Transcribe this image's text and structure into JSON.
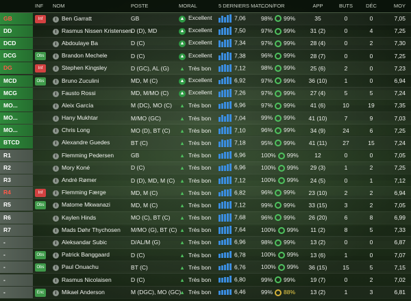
{
  "headers": {
    "role": "",
    "inf": "INF",
    "nom": "NOM",
    "poste": "POSTE",
    "moral": "MORAL",
    "derniers": "5 DERNIERS MAT...",
    "confor": "CON/FOR",
    "app": "APP",
    "buts": "BUTS",
    "dec": "DÉC",
    "moy": "MOY"
  },
  "colors": {
    "role_green": "#2f8a3b",
    "role_grey": "#586359",
    "role_red_text": "#ff5a4a",
    "inf_red": "#d34141",
    "inf_green": "#3f9a4a",
    "bar_blue": "#3a8de0",
    "ring_green": "#4fc25f",
    "ring_amber": "#d6b43a"
  },
  "players": [
    {
      "role": "GB",
      "role_style": "green red-text",
      "inf": "Inf",
      "inf_style": "red",
      "name": "Ben Garratt",
      "poste": "GB",
      "moral": "Excellent",
      "mood": "excellent",
      "bars": [
        0.6,
        0.8,
        0.7,
        0.9,
        1.0
      ],
      "rating": "7,06",
      "cond": "98%",
      "form": "99%",
      "form_amber": false,
      "app": "35",
      "buts": "0",
      "dec": "0",
      "moy": "7,05"
    },
    {
      "role": "DD",
      "role_style": "green",
      "inf": "",
      "inf_style": "empty",
      "name": "Rasmus Nissen Kristensen",
      "poste": "D (D), MD",
      "moral": "Excellent",
      "mood": "excellent",
      "bars": [
        0.7,
        0.8,
        0.9,
        0.8,
        1.0
      ],
      "rating": "7,50",
      "cond": "97%",
      "form": "99%",
      "form_amber": false,
      "app": "31 (2)",
      "buts": "0",
      "dec": "4",
      "moy": "7,25"
    },
    {
      "role": "DCD",
      "role_style": "green",
      "inf": "",
      "inf_style": "empty",
      "name": "Abdoulaye Ba",
      "poste": "D (C)",
      "moral": "Excellent",
      "mood": "excellent",
      "bars": [
        0.8,
        0.7,
        0.9,
        0.9,
        1.0
      ],
      "rating": "7,34",
      "cond": "97%",
      "form": "99%",
      "form_amber": false,
      "app": "28 (4)",
      "buts": "0",
      "dec": "2",
      "moy": "7,30"
    },
    {
      "role": "DCG",
      "role_style": "green",
      "inf": "Obs",
      "inf_style": "green",
      "name": "Brandon Mechele",
      "poste": "D (C)",
      "moral": "Excellent",
      "mood": "excellent",
      "bars": [
        0.6,
        0.9,
        0.8,
        1.0,
        0.9
      ],
      "rating": "7,38",
      "cond": "96%",
      "form": "99%",
      "form_amber": false,
      "app": "28 (7)",
      "buts": "0",
      "dec": "0",
      "moy": "7,25"
    },
    {
      "role": "DG",
      "role_style": "green red-text",
      "inf": "Inf",
      "inf_style": "red",
      "name": "Stephen Kingsley",
      "poste": "D (GC), AL (G)",
      "moral": "Très bon",
      "mood": "tresbon",
      "bars": [
        0.7,
        0.8,
        0.9,
        0.8,
        0.9
      ],
      "rating": "7,12",
      "cond": "98%",
      "form": "99%",
      "form_amber": false,
      "app": "25 (6)",
      "buts": "2",
      "dec": "0",
      "moy": "7,23"
    },
    {
      "role": "MCD",
      "role_style": "green",
      "inf": "Obs",
      "inf_style": "green",
      "name": "Bruno Zuculini",
      "poste": "MD, M (C)",
      "moral": "Excellent",
      "mood": "excellent",
      "bars": [
        0.5,
        0.7,
        0.8,
        0.9,
        0.8
      ],
      "rating": "6,92",
      "cond": "97%",
      "form": "99%",
      "form_amber": false,
      "app": "36 (10)",
      "buts": "1",
      "dec": "0",
      "moy": "6,94"
    },
    {
      "role": "MCG",
      "role_style": "green",
      "inf": "",
      "inf_style": "empty",
      "name": "Fausto Rossi",
      "poste": "MD, M/MO (C)",
      "moral": "Excellent",
      "mood": "excellent",
      "bars": [
        0.7,
        0.8,
        0.9,
        0.9,
        1.0
      ],
      "rating": "7,26",
      "cond": "97%",
      "form": "99%",
      "form_amber": false,
      "app": "27 (4)",
      "buts": "5",
      "dec": "5",
      "moy": "7,24"
    },
    {
      "role": "MO...",
      "role_style": "green",
      "inf": "",
      "inf_style": "empty",
      "name": "Aleix García",
      "poste": "M (DC), MO (C)",
      "moral": "Très bon",
      "mood": "tresbon",
      "bars": [
        0.6,
        0.7,
        0.8,
        0.8,
        0.9
      ],
      "rating": "6,96",
      "cond": "97%",
      "form": "99%",
      "form_amber": false,
      "app": "41 (6)",
      "buts": "10",
      "dec": "19",
      "moy": "7,35"
    },
    {
      "role": "MO...",
      "role_style": "green",
      "inf": "",
      "inf_style": "empty",
      "name": "Hany Mukhtar",
      "poste": "M/MO (GC)",
      "moral": "Très bon",
      "mood": "tresbon",
      "bars": [
        0.6,
        0.8,
        0.7,
        0.9,
        0.9
      ],
      "rating": "7,04",
      "cond": "99%",
      "form": "99%",
      "form_amber": false,
      "app": "41 (10)",
      "buts": "7",
      "dec": "9",
      "moy": "7,03"
    },
    {
      "role": "MO...",
      "role_style": "green",
      "inf": "",
      "inf_style": "empty",
      "name": "Chris Long",
      "poste": "MO (D), BT (C)",
      "moral": "Très bon",
      "mood": "tresbon",
      "bars": [
        0.7,
        0.8,
        0.9,
        0.8,
        0.9
      ],
      "rating": "7,10",
      "cond": "96%",
      "form": "99%",
      "form_amber": false,
      "app": "34 (9)",
      "buts": "24",
      "dec": "6",
      "moy": "7,25"
    },
    {
      "role": "BTCD",
      "role_style": "green",
      "inf": "",
      "inf_style": "empty",
      "name": "Alexandre Guedes",
      "poste": "BT (C)",
      "moral": "Très bon",
      "mood": "tresbon",
      "bars": [
        0.7,
        0.9,
        0.8,
        0.9,
        1.0
      ],
      "rating": "7,18",
      "cond": "95%",
      "form": "99%",
      "form_amber": false,
      "app": "41 (11)",
      "buts": "27",
      "dec": "15",
      "moy": "7,24"
    },
    {
      "role": "R1",
      "role_style": "grey",
      "inf": "",
      "inf_style": "empty",
      "name": "Flemming Pedersen",
      "poste": "GB",
      "moral": "Très bon",
      "mood": "tresbon",
      "bars": [
        0.6,
        0.7,
        0.8,
        0.8,
        0.9
      ],
      "rating": "6,96",
      "cond": "100%",
      "form": "99%",
      "form_amber": false,
      "app": "12",
      "buts": "0",
      "dec": "0",
      "moy": "7,05"
    },
    {
      "role": "R2",
      "role_style": "grey",
      "inf": "",
      "inf_style": "empty",
      "name": "Mory Koné",
      "poste": "D (C)",
      "moral": "Très bon",
      "mood": "tresbon",
      "bars": [
        0.6,
        0.7,
        0.7,
        0.8,
        0.9
      ],
      "rating": "6,96",
      "cond": "100%",
      "form": "99%",
      "form_amber": false,
      "app": "29 (3)",
      "buts": "1",
      "dec": "2",
      "moy": "7,25"
    },
    {
      "role": "R3",
      "role_style": "grey",
      "inf": "",
      "inf_style": "empty",
      "name": "André Rømer",
      "poste": "D (D), MD, M (C)",
      "moral": "Très bon",
      "mood": "tresbon",
      "bars": [
        0.7,
        0.8,
        0.8,
        0.9,
        0.9
      ],
      "rating": "7,12",
      "cond": "100%",
      "form": "99%",
      "form_amber": false,
      "app": "24 (5)",
      "buts": "0",
      "dec": "1",
      "moy": "7,12"
    },
    {
      "role": "R4",
      "role_style": "grey red-text",
      "inf": "Inf",
      "inf_style": "red",
      "name": "Flemming Færge",
      "poste": "MD, M (C)",
      "moral": "Très bon",
      "mood": "tresbon",
      "bars": [
        0.5,
        0.7,
        0.8,
        0.8,
        0.9
      ],
      "rating": "6,82",
      "cond": "96%",
      "form": "99%",
      "form_amber": false,
      "app": "23 (10)",
      "buts": "2",
      "dec": "2",
      "moy": "6,94"
    },
    {
      "role": "R5",
      "role_style": "grey",
      "inf": "Obs",
      "inf_style": "green",
      "name": "Matome Mkwanazi",
      "poste": "MD, M (C)",
      "moral": "Très bon",
      "mood": "tresbon",
      "bars": [
        0.7,
        0.8,
        0.9,
        0.8,
        0.9
      ],
      "rating": "7,12",
      "cond": "99%",
      "form": "99%",
      "form_amber": false,
      "app": "33 (15)",
      "buts": "3",
      "dec": "2",
      "moy": "7,05"
    },
    {
      "role": "R6",
      "role_style": "grey",
      "inf": "",
      "inf_style": "empty",
      "name": "Kaylen Hinds",
      "poste": "MO (C), BT (C)",
      "moral": "Très bon",
      "mood": "tresbon",
      "bars": [
        0.8,
        0.9,
        0.9,
        1.0,
        1.0
      ],
      "rating": "7,68",
      "cond": "96%",
      "form": "99%",
      "form_amber": false,
      "app": "26 (20)",
      "buts": "6",
      "dec": "8",
      "moy": "6,99"
    },
    {
      "role": "R7",
      "role_style": "grey",
      "inf": "",
      "inf_style": "empty",
      "name": "Mads Døhr Thychosen",
      "poste": "M/MO (G), BT (C)",
      "moral": "Très bon",
      "mood": "tresbon",
      "bars": [
        0.8,
        0.8,
        0.9,
        0.9,
        1.0
      ],
      "rating": "7,64",
      "cond": "100%",
      "form": "99%",
      "form_amber": false,
      "app": "11 (2)",
      "buts": "8",
      "dec": "5",
      "moy": "7,33"
    },
    {
      "role": "-",
      "role_style": "grey",
      "inf": "",
      "inf_style": "empty",
      "name": "Aleksandar Subic",
      "poste": "D/AL/M (G)",
      "moral": "Très bon",
      "mood": "tresbon",
      "bars": [
        0.5,
        0.6,
        0.7,
        0.8,
        0.8
      ],
      "rating": "6,96",
      "cond": "98%",
      "form": "99%",
      "form_amber": false,
      "app": "13 (2)",
      "buts": "0",
      "dec": "0",
      "moy": "6,87"
    },
    {
      "role": "-",
      "role_style": "grey",
      "inf": "Obs",
      "inf_style": "green",
      "name": "Patrick Banggaard",
      "poste": "D (C)",
      "moral": "Très bon",
      "mood": "tresbon",
      "bars": [
        0.5,
        0.6,
        0.7,
        0.7,
        0.8
      ],
      "rating": "6,78",
      "cond": "100%",
      "form": "99%",
      "form_amber": false,
      "app": "13 (6)",
      "buts": "1",
      "dec": "0",
      "moy": "7,07"
    },
    {
      "role": "-",
      "role_style": "grey",
      "inf": "Obs",
      "inf_style": "green",
      "name": "Paul Onuachu",
      "poste": "BT (C)",
      "moral": "Très bon",
      "mood": "tresbon",
      "bars": [
        0.5,
        0.6,
        0.7,
        0.8,
        0.8
      ],
      "rating": "6,76",
      "cond": "100%",
      "form": "99%",
      "form_amber": false,
      "app": "36 (15)",
      "buts": "15",
      "dec": "5",
      "moy": "7,15"
    },
    {
      "role": "-",
      "role_style": "grey",
      "inf": "",
      "inf_style": "empty",
      "name": "Rasmus Nicolaisen",
      "poste": "D (C)",
      "moral": "Très bon",
      "mood": "tresbon",
      "bars": [
        0.6,
        0.6,
        0.7,
        0.7,
        0.8
      ],
      "rating": "6,80",
      "cond": "99%",
      "form": "99%",
      "form_amber": false,
      "app": "19 (7)",
      "buts": "0",
      "dec": "2",
      "moy": "7,02"
    },
    {
      "role": "-",
      "role_style": "grey",
      "inf": "Enc",
      "inf_style": "green",
      "name": "Mikael Anderson",
      "poste": "M (DGC), MO (GC)",
      "moral": "Très bon",
      "mood": "tresbon",
      "bars": [
        0.5,
        0.6,
        0.6,
        0.7,
        0.7
      ],
      "rating": "6,46",
      "cond": "99%",
      "form": "88%",
      "form_amber": true,
      "app": "13 (2)",
      "buts": "1",
      "dec": "3",
      "moy": "6,81"
    }
  ]
}
